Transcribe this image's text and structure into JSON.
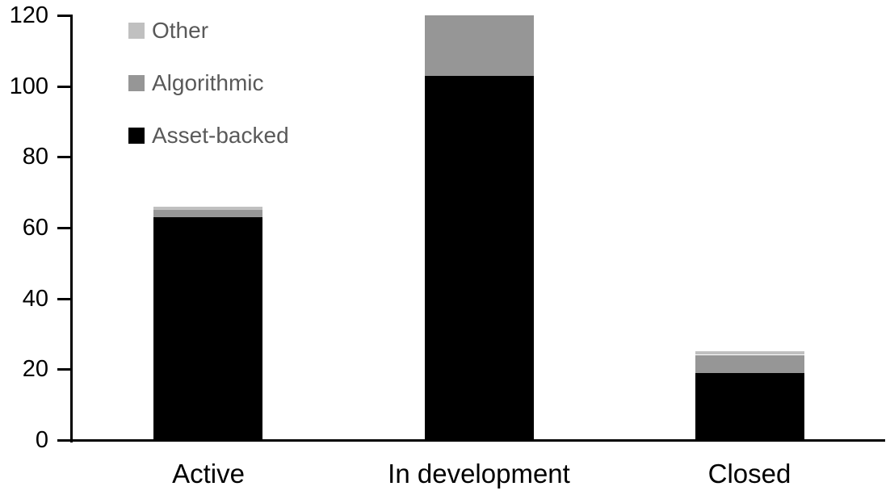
{
  "chart_data": {
    "type": "bar",
    "stacked": true,
    "title": "",
    "categories": [
      "Active",
      "In development",
      "Closed"
    ],
    "series": [
      {
        "name": "Asset-backed",
        "color": "#000000",
        "values": [
          63,
          103,
          19
        ]
      },
      {
        "name": "Algorithmic",
        "color": "#969696",
        "values": [
          2,
          17,
          5
        ]
      },
      {
        "name": "Other",
        "color": "#c0c0c0",
        "values": [
          1,
          0,
          1
        ]
      }
    ],
    "totals": [
      66,
      120,
      25
    ],
    "y_axis": {
      "min": 0,
      "max": 120,
      "step": 20,
      "tick_labels": [
        "0",
        "20",
        "40",
        "60",
        "80",
        "100",
        "120"
      ]
    },
    "x_axis": {
      "labels": [
        "Active",
        "In development",
        "Closed"
      ]
    },
    "legend": {
      "position": "top-left",
      "text_color": "#595959",
      "entries": [
        {
          "label": "Other",
          "color": "#c0c0c0"
        },
        {
          "label": "Algorithmic",
          "color": "#969696"
        },
        {
          "label": "Asset-backed",
          "color": "#000000"
        }
      ]
    },
    "grid": false,
    "axis_color": "#000000",
    "background_color": "#ffffff"
  }
}
